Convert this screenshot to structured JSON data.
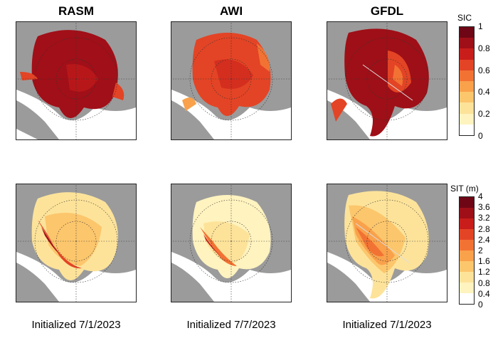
{
  "columns": [
    {
      "title": "RASM",
      "caption": "Initialized 7/1/2023"
    },
    {
      "title": "AWI",
      "caption": "Initialized 7/7/2023"
    },
    {
      "title": "GFDL",
      "caption": "Initialized 7/1/2023"
    }
  ],
  "colorbars": {
    "sic": {
      "label": "SIC",
      "ticks": [
        "1",
        "0.8",
        "0.6",
        "0.4",
        "0.2",
        "0"
      ],
      "colors": [
        "#ffffff",
        "#fff3bf",
        "#fde39a",
        "#fcc66c",
        "#f9a14b",
        "#f27233",
        "#e34425",
        "#c81d1b",
        "#9f0f17",
        "#6e0615"
      ]
    },
    "sit": {
      "label": "SIT (m)",
      "ticks": [
        "4",
        "3.6",
        "3.2",
        "2.8",
        "2.4",
        "2",
        "1.6",
        "1.2",
        "0.8",
        "0.4",
        "0"
      ],
      "colors": [
        "#ffffff",
        "#fff3bf",
        "#fde39a",
        "#fcc66c",
        "#f9a14b",
        "#f27233",
        "#e34425",
        "#c81d1b",
        "#9f0f17",
        "#6e0615"
      ]
    }
  },
  "legend": {
    "colors": {
      "land": "#9b9b9b",
      "ocean": "#ffffff"
    }
  }
}
